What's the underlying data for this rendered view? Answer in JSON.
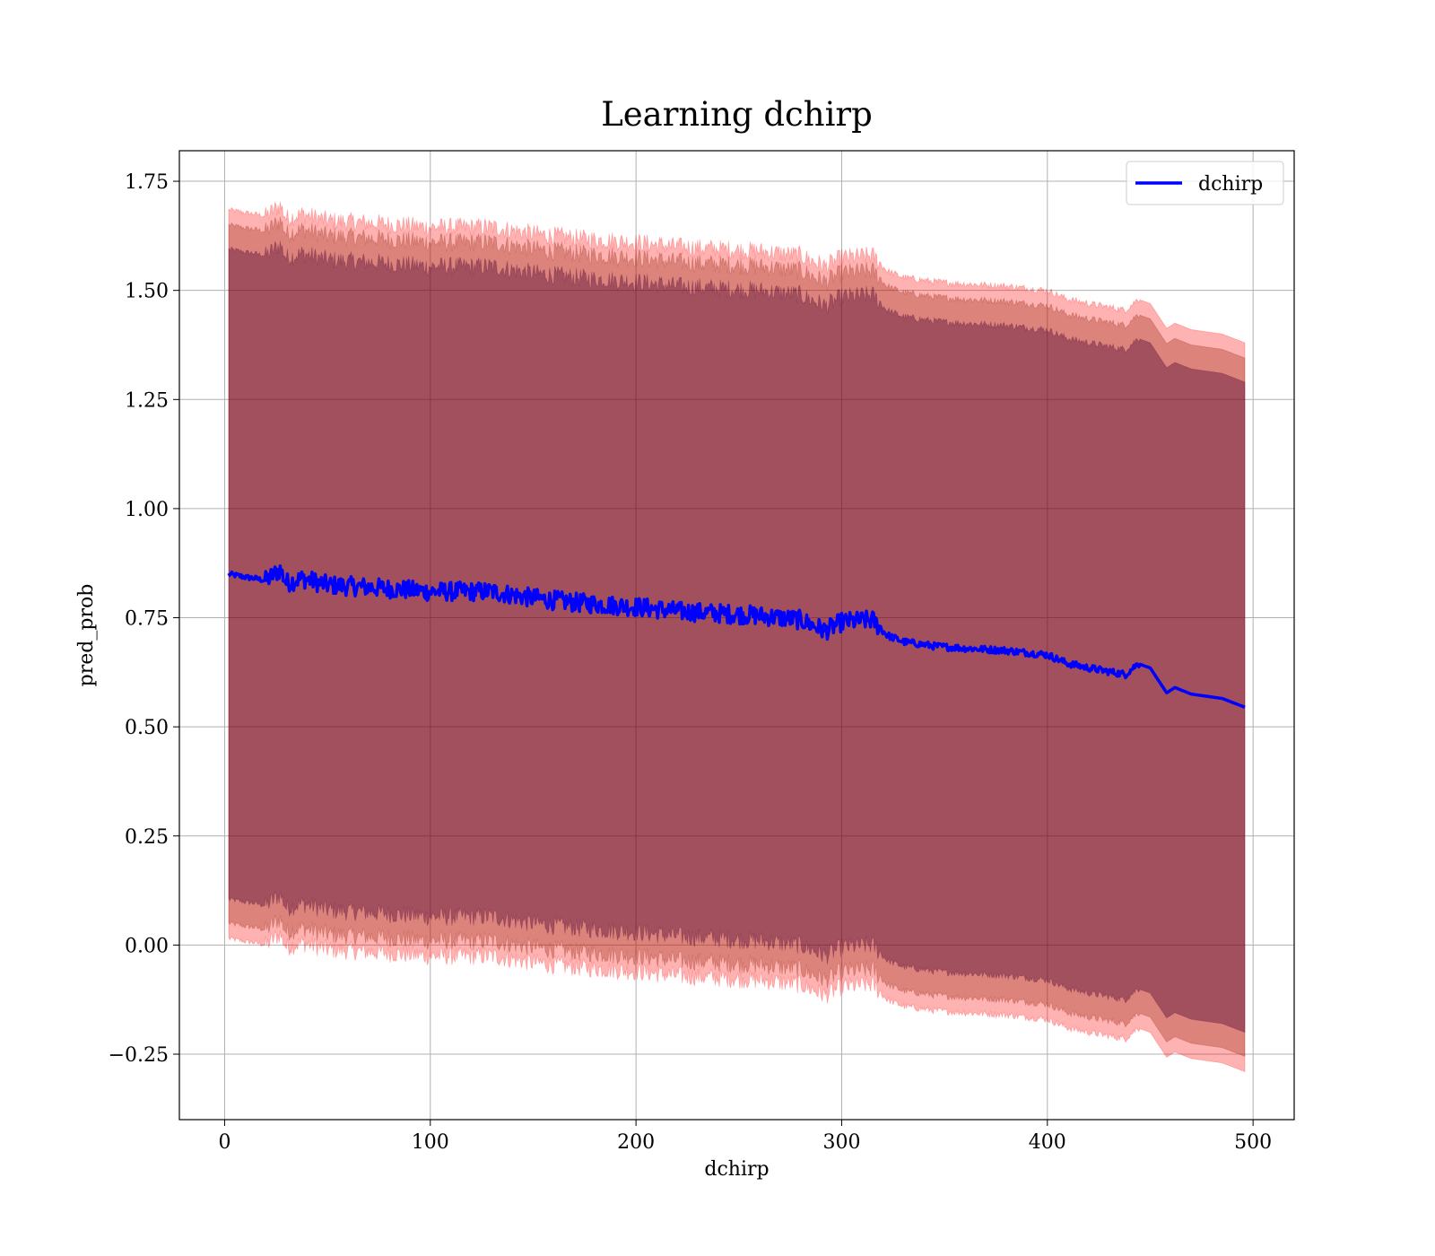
{
  "chart_data": {
    "type": "line",
    "title": "Learning dchirp",
    "xlabel": "dchirp",
    "ylabel": "pred_prob",
    "xlim": [
      -22,
      520
    ],
    "ylim": [
      -0.4,
      1.82
    ],
    "xticks": [
      0,
      100,
      200,
      300,
      400,
      500
    ],
    "yticks": [
      -0.25,
      0.0,
      0.25,
      0.5,
      0.75,
      1.0,
      1.25,
      1.5,
      1.75
    ],
    "xtick_labels": [
      "0",
      "100",
      "200",
      "300",
      "400",
      "500"
    ],
    "ytick_labels": [
      "−0.25",
      "0.00",
      "0.25",
      "0.50",
      "0.75",
      "1.00",
      "1.25",
      "1.50",
      "1.75"
    ],
    "grid": true,
    "legend_position": "top-right",
    "colors": {
      "line": "#0000ff",
      "band_outer": "#ff0000",
      "band_inner": "#8b1a00",
      "band_core": "#4b0033",
      "grid": "#b0b0b0"
    },
    "series": [
      {
        "name": "dchirp",
        "x": [
          2,
          8,
          10,
          15,
          20,
          27,
          30,
          38,
          50,
          70,
          100,
          130,
          150,
          170,
          200,
          220,
          240,
          260,
          280,
          292,
          300,
          315,
          322,
          330,
          345,
          360,
          380,
          400,
          410,
          420,
          438,
          444,
          450,
          458,
          462,
          470,
          485,
          496
        ],
        "values": [
          0.85,
          0.845,
          0.843,
          0.84,
          0.835,
          0.86,
          0.83,
          0.84,
          0.825,
          0.82,
          0.81,
          0.81,
          0.795,
          0.785,
          0.775,
          0.765,
          0.76,
          0.755,
          0.745,
          0.72,
          0.74,
          0.745,
          0.71,
          0.695,
          0.685,
          0.68,
          0.675,
          0.665,
          0.645,
          0.635,
          0.62,
          0.645,
          0.635,
          0.578,
          0.59,
          0.575,
          0.565,
          0.545
        ],
        "bands": [
          {
            "name": "band_outer",
            "offset_start": 0.835,
            "offset_end": 0.835
          },
          {
            "name": "band_inner",
            "offset_start": 0.8,
            "offset_end": 0.8
          },
          {
            "name": "band_core",
            "offset_start": 0.745,
            "offset_end": 0.745
          }
        ]
      }
    ]
  }
}
